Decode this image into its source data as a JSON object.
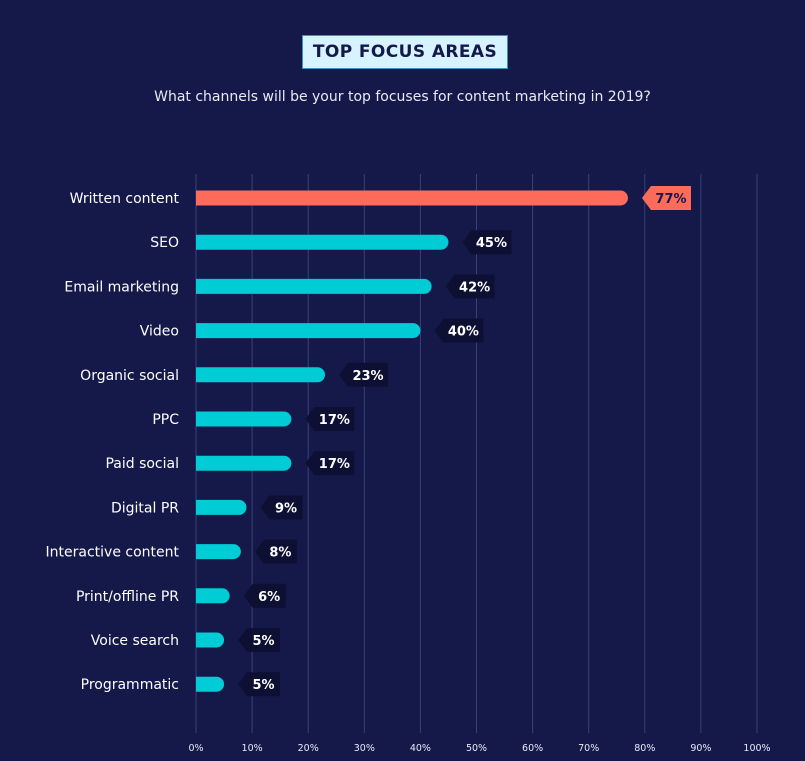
{
  "header": {
    "title": "TOP FOCUS AREAS",
    "subtitle": "What channels will be your top focuses for content marketing in 2019?"
  },
  "colors": {
    "background": "#14194a",
    "highlight_bar": "#ff6b5b",
    "bar": "#00ccd6",
    "label_box": "#0d1033",
    "gridline": "#3a4178"
  },
  "chart_data": {
    "type": "bar",
    "orientation": "horizontal",
    "categories": [
      "Written content",
      "SEO",
      "Email marketing",
      "Video",
      "Organic social",
      "PPC",
      "Paid social",
      "Digital PR",
      "Interactive content",
      "Print/offline PR",
      "Voice search",
      "Programmatic"
    ],
    "values": [
      77,
      45,
      42,
      40,
      23,
      17,
      17,
      9,
      8,
      6,
      5,
      5
    ],
    "value_labels": [
      "77%",
      "45%",
      "42%",
      "40%",
      "23%",
      "17%",
      "17%",
      "9%",
      "8%",
      "6%",
      "5%",
      "5%"
    ],
    "highlighted_index": 0,
    "xlim": [
      0,
      100
    ],
    "x_ticks": [
      0,
      10,
      20,
      30,
      40,
      50,
      60,
      70,
      80,
      90,
      100
    ],
    "x_tick_labels": [
      "0%",
      "10%",
      "20%",
      "30%",
      "40%",
      "50%",
      "60%",
      "70%",
      "80%",
      "90%",
      "100%"
    ],
    "grid": true
  }
}
